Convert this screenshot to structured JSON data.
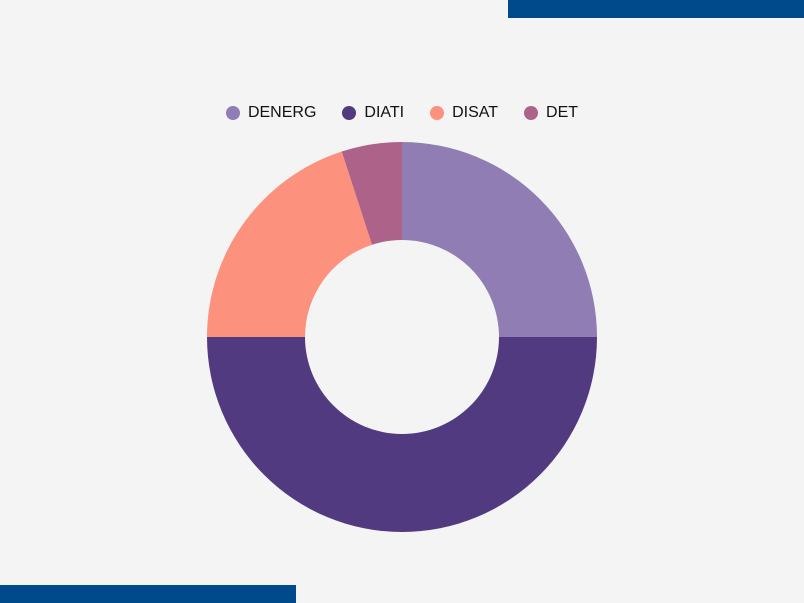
{
  "chart_data": {
    "type": "pie",
    "variant": "donut",
    "categories": [
      "DENERG",
      "DIATI",
      "DISAT",
      "DET"
    ],
    "values": [
      25,
      50,
      20,
      5
    ],
    "colors": [
      "#907db4",
      "#523a80",
      "#fc917d",
      "#ad6289"
    ],
    "legend_position": "top-center"
  },
  "theme": {
    "background": "#f4f4f4",
    "accent": "#004a8b"
  }
}
